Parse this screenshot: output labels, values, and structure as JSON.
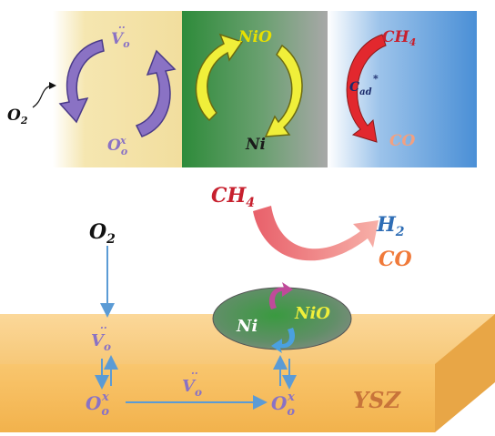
{
  "top_panel": {
    "yellow_section": {
      "top_label_base": "V",
      "top_label_sub": "o",
      "top_label_sup": "··",
      "bottom_label_base": "O",
      "bottom_label_sub": "o",
      "bottom_label_sup": "x",
      "input_label_base": "O",
      "input_label_sub": "2"
    },
    "green_section": {
      "top_label": "NiO",
      "bottom_label": "Ni"
    },
    "blue_section": {
      "top_label_base": "CH",
      "top_label_sub": "4",
      "middle_label_base": "C",
      "middle_label_sub": "ad",
      "middle_label_sup": "*",
      "bottom_label": "CO"
    }
  },
  "bottom_panel": {
    "input_base": "O",
    "input_sub": "2",
    "reactant_base": "CH",
    "reactant_sub": "4",
    "product_h2_base": "H",
    "product_h2_sub": "2",
    "product_co": "CO",
    "particle": {
      "left_label": "Ni",
      "right_label": "NiO"
    },
    "slab": {
      "material_label": "YSZ",
      "vacancy_base": "V",
      "vacancy_sub": "o",
      "vacancy_sup": "··",
      "oxygen_base": "O",
      "oxygen_sub": "o",
      "oxygen_sup": "x"
    }
  },
  "colors": {
    "purple": "#8a72c4",
    "yellow_text": "#e8e000",
    "red_text": "#c7202e",
    "blue_text": "#2e6db5",
    "orange_text": "#f07a3a",
    "slab_text": "#c8743a",
    "arrow_blue": "#5b9bd5"
  }
}
